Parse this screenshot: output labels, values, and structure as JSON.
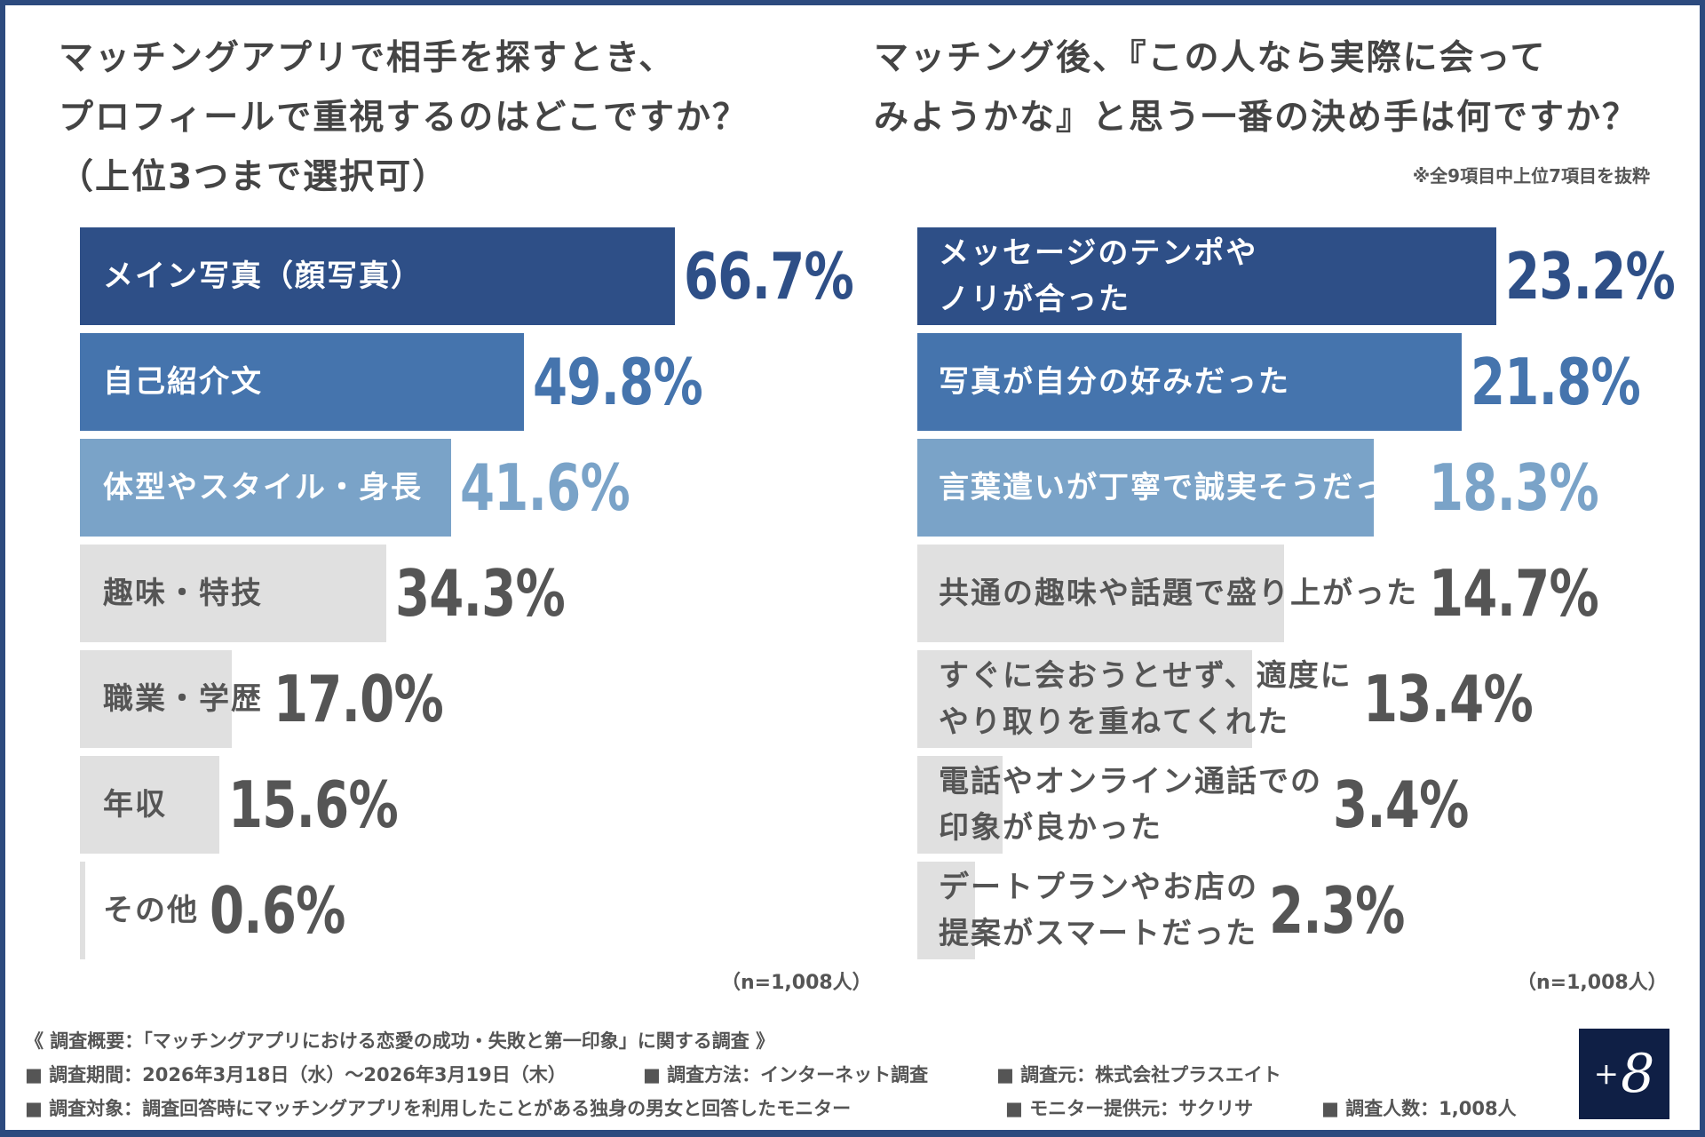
{
  "colors": {
    "dark": "#2e4f87",
    "mid": "#4574ad",
    "light": "#7aa3c8",
    "gray": "#e0e0e0",
    "text_gray": "#555555",
    "frame": "#2c4a7e",
    "logo_bg": "#0f1f45"
  },
  "chart_data": [
    {
      "type": "bar",
      "orientation": "horizontal",
      "title_lines": [
        "マッチングアプリで相手を探すとき、",
        "プロフィールで重視するのはどこですか？",
        "（上位3つまで選択可）"
      ],
      "categories": [
        "メイン写真（顔写真）",
        "自己紹介文",
        "体型やスタイル・身長",
        "趣味・特技",
        "職業・学歴",
        "年収",
        "その他"
      ],
      "values": [
        66.7,
        49.8,
        41.6,
        34.3,
        17.0,
        15.6,
        0.6
      ],
      "value_labels": [
        "66.7%",
        "49.8%",
        "41.6%",
        "34.3%",
        "17.0%",
        "15.6%",
        "0.6%"
      ],
      "unit": "%",
      "note": "(n=1,008人)",
      "n_label": "（n=1,008人）"
    },
    {
      "type": "bar",
      "orientation": "horizontal",
      "title_lines": [
        "マッチング後、『この人なら実際に会って",
        "みようかな』と思う一番の決め手は何ですか？"
      ],
      "subnote": "※全9項目中上位7項目を抜粋",
      "categories": [
        [
          "メッセージのテンポや",
          "ノリが合った"
        ],
        [
          "写真が自分の好みだった"
        ],
        [
          "言葉遣いが丁寧で誠実そうだった"
        ],
        [
          "共通の趣味や話題で盛り上がった"
        ],
        [
          "すぐに会おうとせず、適度に",
          "やり取りを重ねてくれた"
        ],
        [
          "電話やオンライン通話での",
          "印象が良かった"
        ],
        [
          "デートプランやお店の",
          "提案がスマートだった"
        ]
      ],
      "values": [
        23.2,
        21.8,
        18.3,
        14.7,
        13.4,
        3.4,
        2.3
      ],
      "value_labels": [
        "23.2%",
        "21.8%",
        "18.3%",
        "14.7%",
        "13.4%",
        "3.4%",
        "2.3%"
      ],
      "unit": "%",
      "n_label": "（n=1,008人）"
    }
  ],
  "footer": {
    "heading": "《 調査概要：「マッチングアプリにおける恋愛の成功・失敗と第一印象」に関する調査 》",
    "row1": [
      "■ 調査期間：2026年3月18日（水）～2026年3月19日（木）",
      "■ 調査方法：インターネット調査",
      "■ 調査元：株式会社プラスエイト"
    ],
    "row2": [
      "■ 調査対象：調査回答時にマッチングアプリを利用したことがある独身の男女と回答したモニター",
      "■ モニター提供元：サクリサ",
      "■ 調査人数：1,008人"
    ]
  },
  "logo": {
    "text": "+8"
  }
}
